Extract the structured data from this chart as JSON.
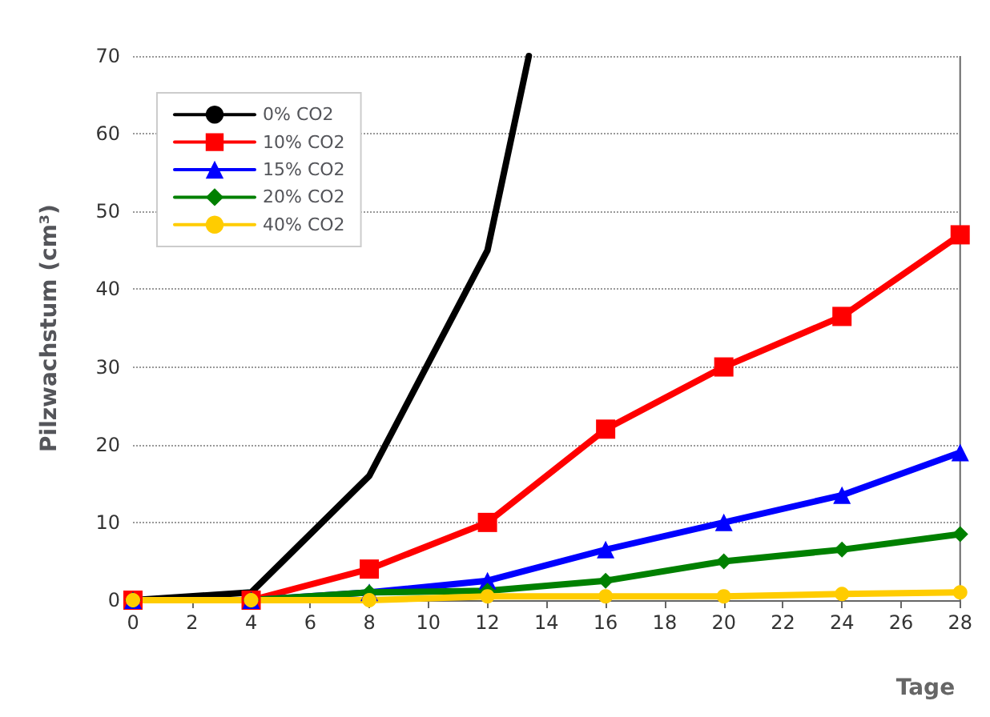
{
  "chart_data": {
    "type": "line",
    "xlabel": "Tage",
    "ylabel": "Pilzwachstum (cm³)",
    "x": [
      0,
      4,
      8,
      12,
      16,
      20,
      24,
      28
    ],
    "xlim": [
      0,
      28
    ],
    "xticks": [
      0,
      2,
      4,
      6,
      8,
      10,
      12,
      14,
      16,
      18,
      20,
      22,
      24,
      26,
      28
    ],
    "ylim": [
      0,
      70
    ],
    "yticks": [
      0,
      10,
      20,
      30,
      40,
      50,
      60,
      70
    ],
    "grid": "y",
    "legend": "top left",
    "line_style": "solid",
    "series": [
      {
        "name": "0% CO2",
        "color": "#000000",
        "x": [
          0,
          4,
          8,
          12,
          13.4
        ],
        "values": [
          0,
          1,
          16,
          45,
          70
        ],
        "marker": "none"
      },
      {
        "name": "10% CO2",
        "color": "#ff0000",
        "values": [
          0,
          0,
          4,
          10,
          22,
          30,
          36.5,
          47
        ],
        "marker": "square"
      },
      {
        "name": "15% CO2",
        "color": "#0000ff",
        "values": [
          0,
          0,
          1,
          2.5,
          6.5,
          10,
          13.5,
          19
        ],
        "marker": "triangle"
      },
      {
        "name": "20% CO2",
        "color": "#008000",
        "values": [
          0,
          0,
          1,
          1.2,
          2.5,
          5,
          6.5,
          8.5
        ],
        "marker": "diamond"
      },
      {
        "name": "40% CO2",
        "color": "#ffcc00",
        "values": [
          0,
          0,
          0,
          0.5,
          0.5,
          0.5,
          0.8,
          1
        ],
        "marker": "circle"
      }
    ]
  }
}
